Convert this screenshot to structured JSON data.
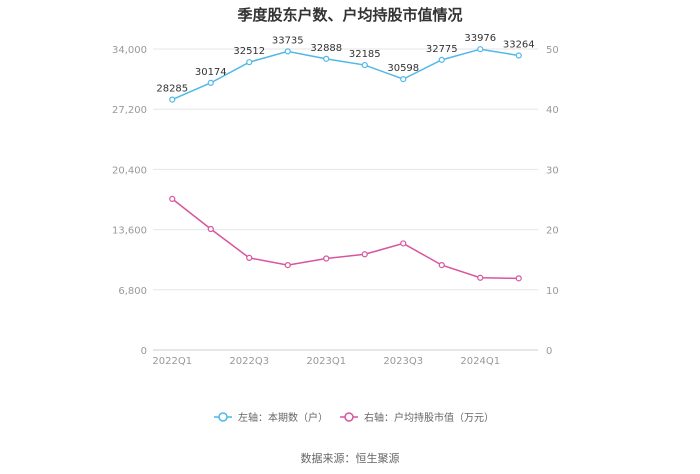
{
  "chart_data": {
    "type": "line",
    "title": "季度股东户数、户均持股市值情况",
    "categories": [
      "2022Q1",
      "2022Q2",
      "2022Q3",
      "2022Q4",
      "2023Q1",
      "2023Q2",
      "2023Q3",
      "2023Q4",
      "2024Q1",
      "2024Q2"
    ],
    "x_tick_labels": [
      "2022Q1",
      "",
      "2022Q3",
      "",
      "2023Q1",
      "",
      "2023Q3",
      "",
      "2024Q1",
      ""
    ],
    "left_axis": {
      "min": 0,
      "max": 34000,
      "ticks": [
        0,
        6800,
        13600,
        20400,
        27200,
        34000
      ],
      "tick_labels": [
        "0",
        "6,800",
        "13,600",
        "20,400",
        "27,200",
        "34,000"
      ]
    },
    "right_axis": {
      "min": 0,
      "max": 50,
      "ticks": [
        0,
        10,
        20,
        30,
        40,
        50
      ],
      "tick_labels": [
        "0",
        "10",
        "20",
        "30",
        "40",
        "50"
      ]
    },
    "series": [
      {
        "name": "左轴：本期数（户）",
        "axis": "left",
        "color": "#4fb8e8",
        "values": [
          28285,
          30174,
          32512,
          33735,
          32888,
          32185,
          30598,
          32775,
          33976,
          33264
        ],
        "labels": [
          "28285",
          "30174",
          "32512",
          "33735",
          "32888",
          "32185",
          "30598",
          "32775",
          "33976",
          "33264"
        ]
      },
      {
        "name": "右轴：户均持股市值（万元）",
        "axis": "right",
        "color": "#d9549f",
        "values": [
          25.1,
          20.1,
          15.3,
          14.1,
          15.2,
          15.9,
          17.7,
          14.1,
          12.0,
          11.9
        ]
      }
    ],
    "grid": true,
    "legend_position": "bottom"
  },
  "source": "数据来源：恒生聚源"
}
